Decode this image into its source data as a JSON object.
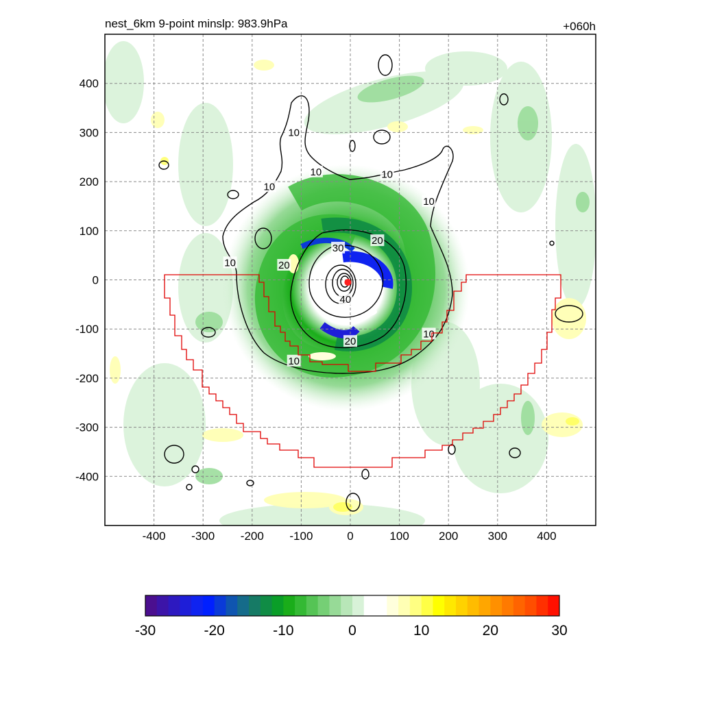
{
  "chart_data": {
    "type": "contour",
    "title_left": "nest_6km  9-point minslp: 983.9hPa",
    "title_right": "+060h",
    "xlim": [
      -500,
      500
    ],
    "ylim": [
      -500,
      500
    ],
    "x_ticks": [
      "-400",
      "-300",
      "-200",
      "-100",
      "0",
      "100",
      "200",
      "300",
      "400"
    ],
    "y_ticks": [
      "400",
      "300",
      "200",
      "100",
      "0",
      "-100",
      "-200",
      "-300",
      "-400"
    ],
    "grid": true,
    "storm_center": [
      -5,
      -5
    ],
    "contour_labels": [
      {
        "text": "10",
        "x": -115,
        "y": 300
      },
      {
        "text": "10",
        "x": -70,
        "y": 220
      },
      {
        "text": "10",
        "x": 75,
        "y": 215
      },
      {
        "text": "10",
        "x": -165,
        "y": 190
      },
      {
        "text": "10",
        "x": 160,
        "y": 160
      },
      {
        "text": "10",
        "x": -245,
        "y": 35
      },
      {
        "text": "10",
        "x": 160,
        "y": -110
      },
      {
        "text": "10",
        "x": -115,
        "y": -165
      },
      {
        "text": "20",
        "x": 55,
        "y": 80
      },
      {
        "text": "20",
        "x": -135,
        "y": 30
      },
      {
        "text": "20",
        "x": 0,
        "y": -125
      },
      {
        "text": "30",
        "x": -25,
        "y": 65
      },
      {
        "text": "40",
        "x": -10,
        "y": -40
      }
    ],
    "colorbar": {
      "ticks": [
        "-30",
        "-20",
        "-10",
        "0",
        "10",
        "20",
        "30"
      ],
      "range": [
        -30,
        30
      ],
      "colors": [
        "#4b0f8f",
        "#3c14a8",
        "#2d19c0",
        "#1e1ed8",
        "#0f23f0",
        "#0020ff",
        "#0a3ad8",
        "#0f55b0",
        "#156b8a",
        "#167a65",
        "#108c45",
        "#0a9e28",
        "#1aad1a",
        "#34b934",
        "#55c455",
        "#75cf75",
        "#97da97",
        "#b8e6b8",
        "#d8f2d8",
        "#ffffff",
        "#ffffff",
        "#ffffdc",
        "#ffffb4",
        "#ffff82",
        "#ffff46",
        "#ffff00",
        "#ffe800",
        "#ffd200",
        "#ffbc00",
        "#ffa600",
        "#ff9000",
        "#ff7a00",
        "#ff6400",
        "#ff4e00",
        "#ff3000",
        "#ff1000"
      ]
    }
  }
}
